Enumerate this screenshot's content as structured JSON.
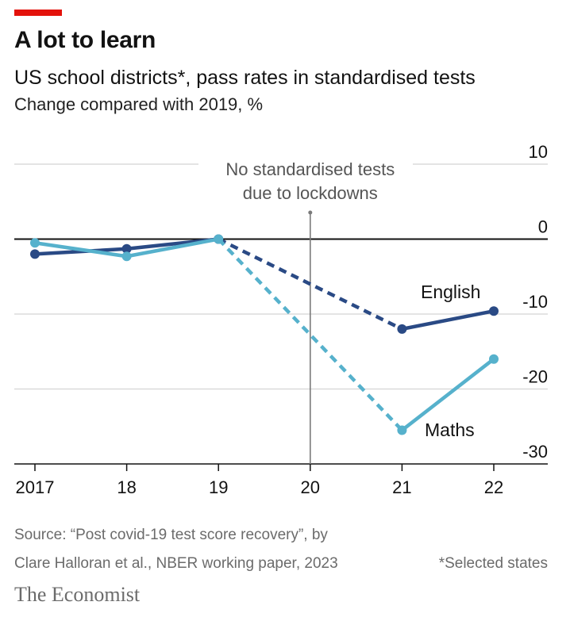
{
  "header": {
    "title": "A lot to learn",
    "subtitle": "US school districts*, pass rates in standardised tests",
    "unit_note": "Change compared with 2019, %"
  },
  "footer": {
    "source_line1": "Source: “Post covid-19 test score recovery”, by",
    "source_line2": "Clare Halloran et al., NBER working paper, 2023",
    "note": "*Selected states",
    "brand": "The Economist"
  },
  "colors": {
    "english": "#2a4a85",
    "maths": "#56b1cc",
    "accent": "#e3120b",
    "grid": "#d4d4d4",
    "annotation_line": "#7a7a7a"
  },
  "chart_data": {
    "type": "line",
    "title": "A lot to learn",
    "subtitle": "US school districts*, pass rates in standardised tests",
    "ylabel": "Change compared with 2019, %",
    "x": [
      "2017",
      "18",
      "19",
      "20",
      "21",
      "22"
    ],
    "ylim": [
      -30,
      10
    ],
    "yticks": [
      10,
      0,
      -10,
      -20,
      -30
    ],
    "ytick_labels": [
      "10",
      "0",
      "-10",
      "-20",
      "-30"
    ],
    "grid": true,
    "series": [
      {
        "name": "English",
        "color": "#2a4a85",
        "points": [
          [
            2017,
            -2
          ],
          [
            2018,
            -1.3
          ],
          [
            2019,
            0
          ],
          [
            2021,
            -12
          ],
          [
            2022,
            -9.6
          ]
        ],
        "gap": [
          2019,
          2021
        ]
      },
      {
        "name": "Maths",
        "color": "#56b1cc",
        "points": [
          [
            2017,
            -0.5
          ],
          [
            2018,
            -2.3
          ],
          [
            2019,
            0
          ],
          [
            2021,
            -25.5
          ],
          [
            2022,
            -16
          ]
        ],
        "gap": [
          2019,
          2021
        ]
      }
    ],
    "annotation": {
      "x": 2020,
      "text_line1": "No standardised tests",
      "text_line2": "due to lockdowns"
    }
  }
}
